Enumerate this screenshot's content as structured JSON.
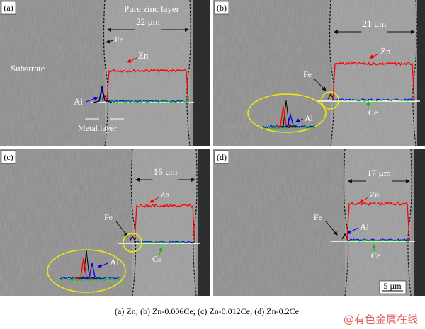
{
  "panels": [
    {
      "label": "(a)",
      "layer_title": "Pure zinc layer",
      "thickness": "22 µm",
      "fe": "Fe",
      "zn": "Zn",
      "substrate": "Substrate",
      "al": "Al",
      "metal_layer": "Metal layer"
    },
    {
      "label": "(b)",
      "thickness": "21 µm",
      "zn": "Zn",
      "fe": "Fe",
      "al": "Al",
      "ce": "Ce"
    },
    {
      "label": "(c)",
      "thickness": "16 µm",
      "zn": "Zn",
      "fe": "Fe",
      "al": "Al",
      "ce": "Ce"
    },
    {
      "label": "(d)",
      "thickness": "17 µm",
      "zn": "Zn",
      "fe": "Fe",
      "al": "Al",
      "ce": "Ce",
      "scale_bar": "5 µm"
    }
  ],
  "caption": "(a)  Zn;  (b)  Zn-0.006Ce;  (c)  Zn-0.012Ce;  (d) Zn-0.2Ce",
  "watermark": "@有色金属在线"
}
